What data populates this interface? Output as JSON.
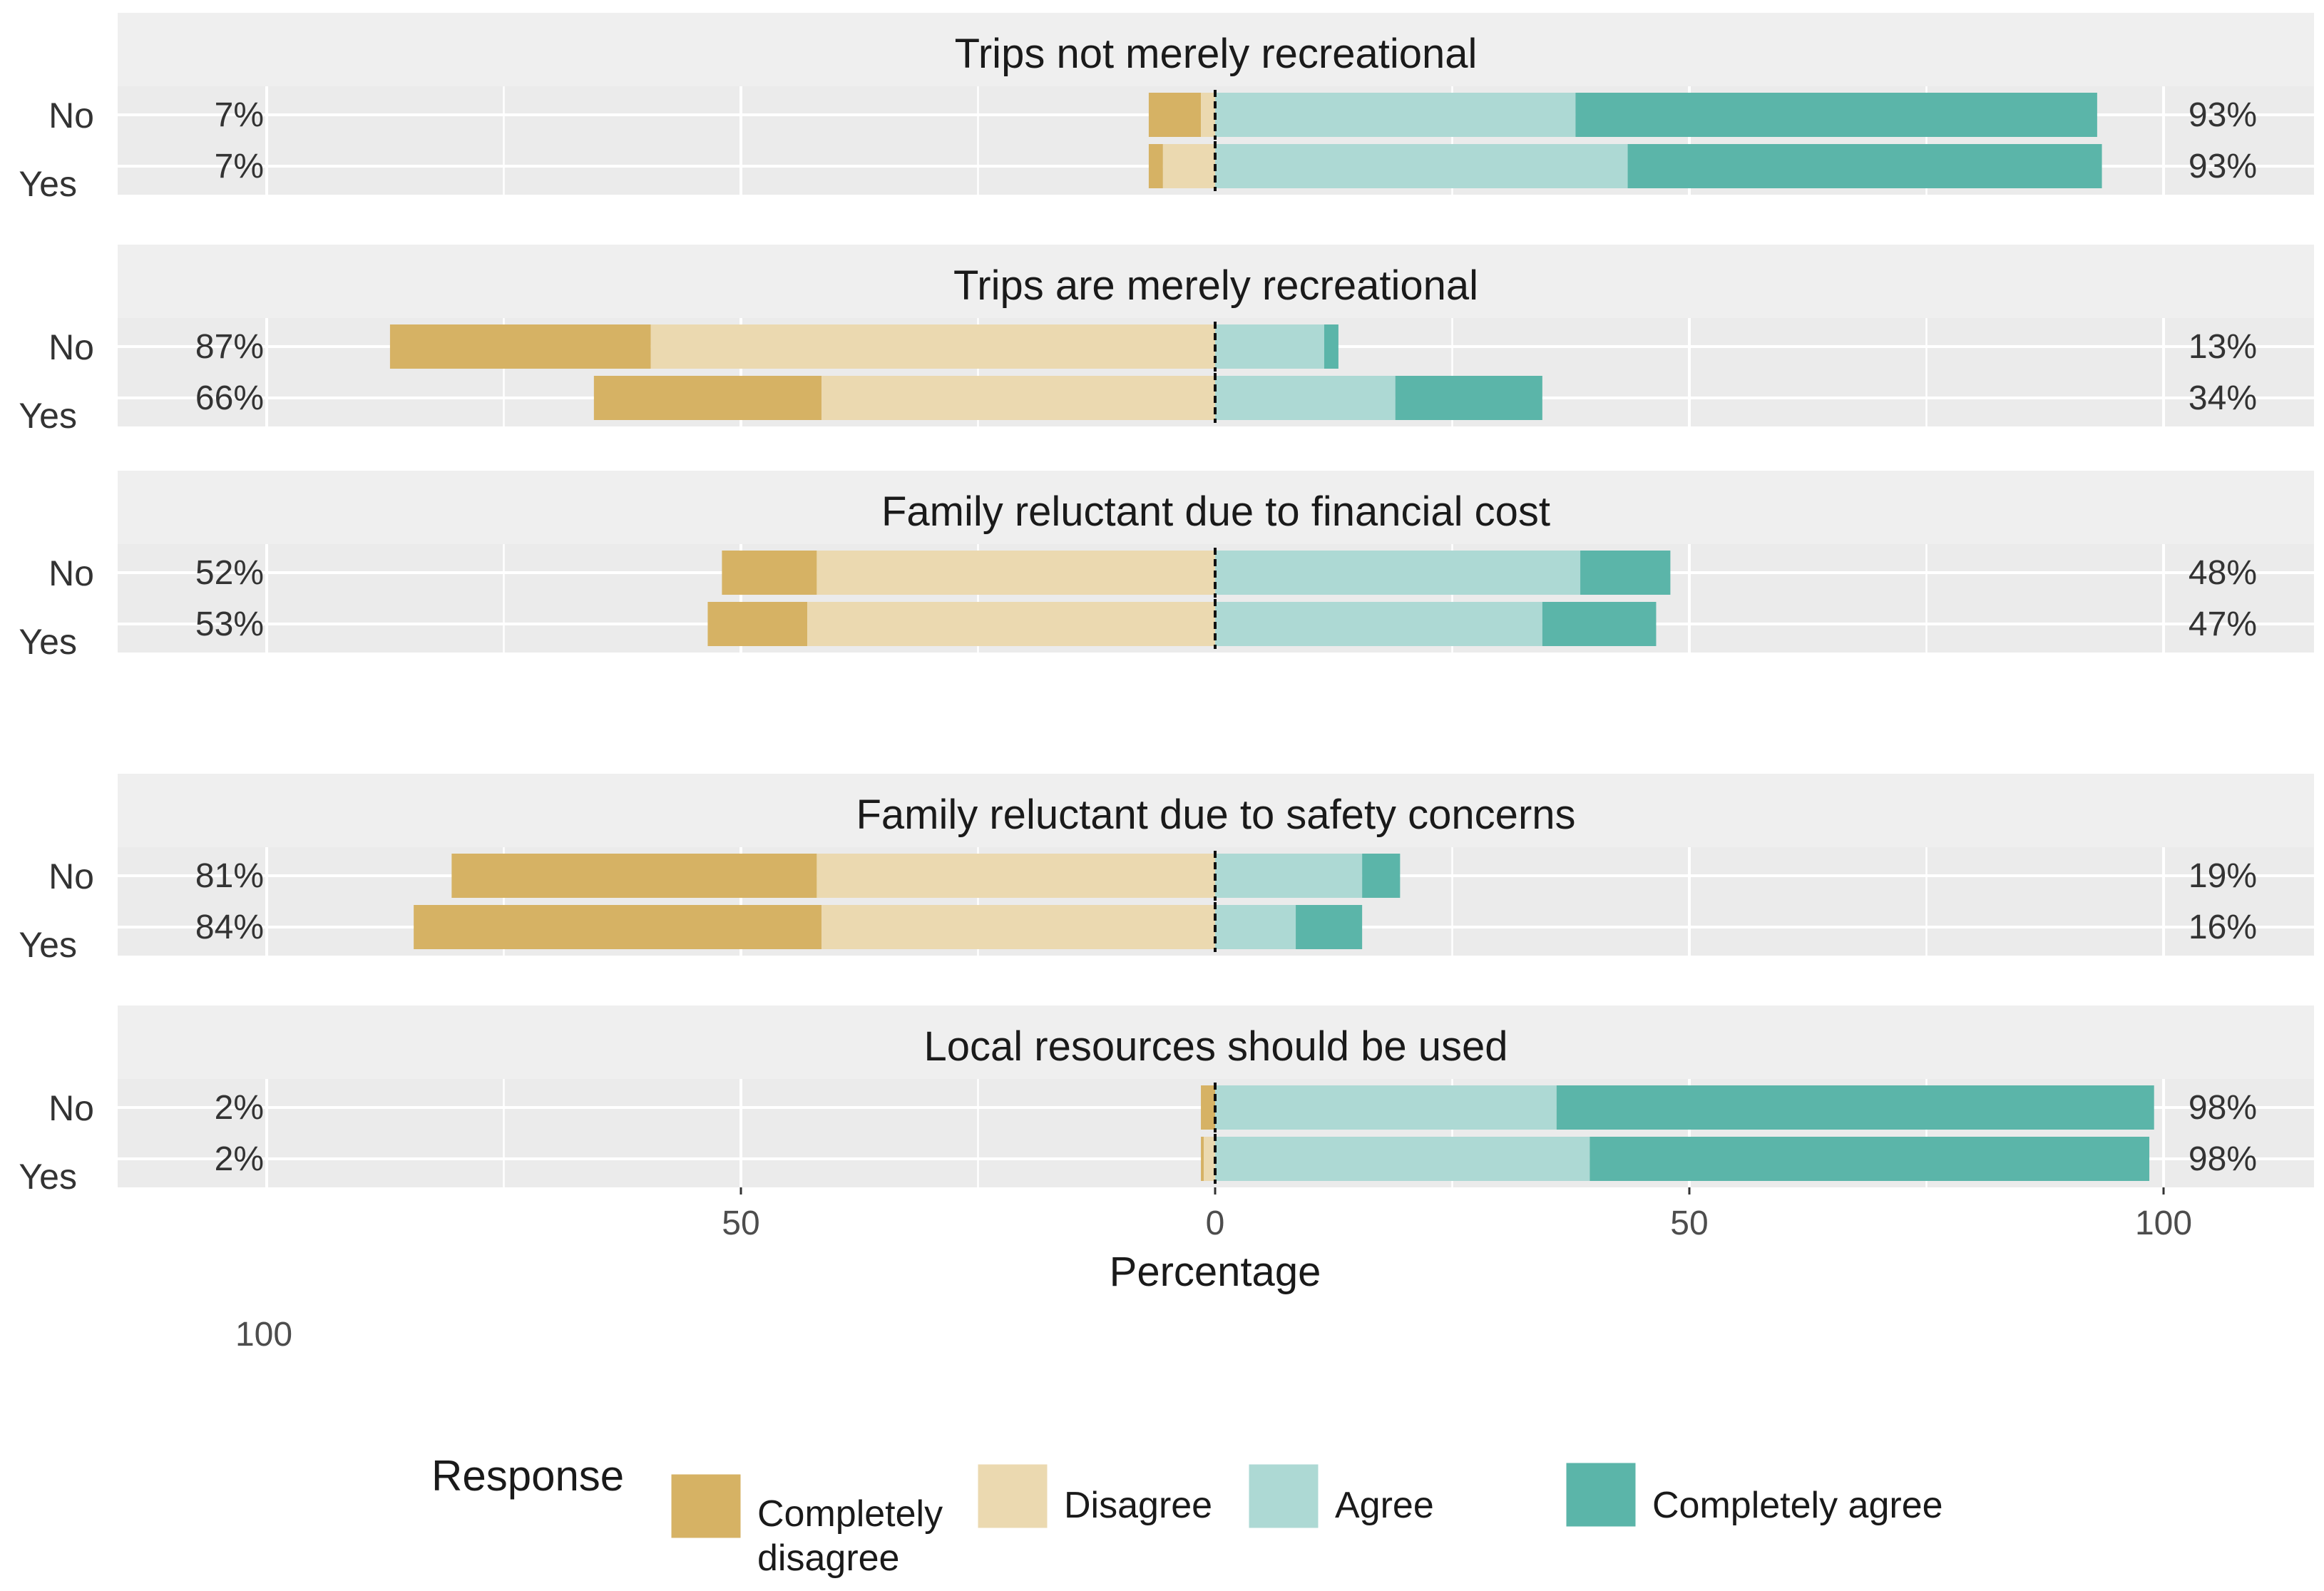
{
  "chart_data": {
    "type": "bar",
    "subtype": "diverging-stacked-horizontal",
    "xlabel": "Percentage",
    "ylabel": "",
    "xlim": [
      -115,
      115
    ],
    "x_ticks": [
      -50,
      0,
      50,
      100
    ],
    "x_tick_labels": [
      "50",
      "0",
      "50",
      "100"
    ],
    "stray_tick_label": "100",
    "grid": true,
    "legend": {
      "title": "Response",
      "position": "bottom",
      "entries": [
        {
          "name": "Completely disagree",
          "lines": [
            "Completely",
            "disagree"
          ],
          "color": "#D6B264"
        },
        {
          "name": "Disagree",
          "lines": [
            "Disagree"
          ],
          "color": "#EBD9B0"
        },
        {
          "name": "Agree",
          "lines": [
            "Agree"
          ],
          "color": "#ADD9D4"
        },
        {
          "name": "Completely agree",
          "lines": [
            "Completely agree"
          ],
          "color": "#5BB5A9"
        }
      ]
    },
    "categories": [
      "No",
      "Yes"
    ],
    "panels": [
      {
        "title": "Trips not merely recreational",
        "rows": [
          {
            "label": "No",
            "completely_disagree": 5.5,
            "disagree": 1.5,
            "agree": 38,
            "completely_agree": 55,
            "left_label": "7%",
            "right_label": "93%"
          },
          {
            "label": "Yes",
            "completely_disagree": 1.5,
            "disagree": 5.5,
            "agree": 43.5,
            "completely_agree": 50,
            "left_label": "7%",
            "right_label": "93%"
          }
        ]
      },
      {
        "title": "Trips are merely recreational",
        "rows": [
          {
            "label": "No",
            "completely_disagree": 27.5,
            "disagree": 59.5,
            "agree": 11.5,
            "completely_agree": 1.5,
            "left_label": "87%",
            "right_label": "13%"
          },
          {
            "label": "Yes",
            "completely_disagree": 24,
            "disagree": 41.5,
            "agree": 19,
            "completely_agree": 15.5,
            "left_label": "66%",
            "right_label": "34%"
          }
        ]
      },
      {
        "title": "Family reluctant due to financial cost",
        "rows": [
          {
            "label": "No",
            "completely_disagree": 10,
            "disagree": 42,
            "agree": 38.5,
            "completely_agree": 9.5,
            "left_label": "52%",
            "right_label": "48%"
          },
          {
            "label": "Yes",
            "completely_disagree": 10.5,
            "disagree": 43,
            "agree": 34.5,
            "completely_agree": 12,
            "left_label": "53%",
            "right_label": "47%"
          }
        ]
      },
      {
        "title": "Family reluctant due to safety concerns",
        "rows": [
          {
            "label": "No",
            "completely_disagree": 38.5,
            "disagree": 42,
            "agree": 15.5,
            "completely_agree": 4,
            "left_label": "81%",
            "right_label": "19%"
          },
          {
            "label": "Yes",
            "completely_disagree": 43,
            "disagree": 41.5,
            "agree": 8.5,
            "completely_agree": 7,
            "left_label": "84%",
            "right_label": "16%"
          }
        ]
      },
      {
        "title": "Local resources should be used",
        "rows": [
          {
            "label": "No",
            "completely_disagree": 1.5,
            "disagree": 0,
            "agree": 36,
            "completely_agree": 63,
            "left_label": "2%",
            "right_label": "98%"
          },
          {
            "label": "Yes",
            "completely_disagree": 0.3,
            "disagree": 1.2,
            "agree": 39.5,
            "completely_agree": 59,
            "left_label": "2%",
            "right_label": "98%"
          }
        ]
      }
    ]
  }
}
